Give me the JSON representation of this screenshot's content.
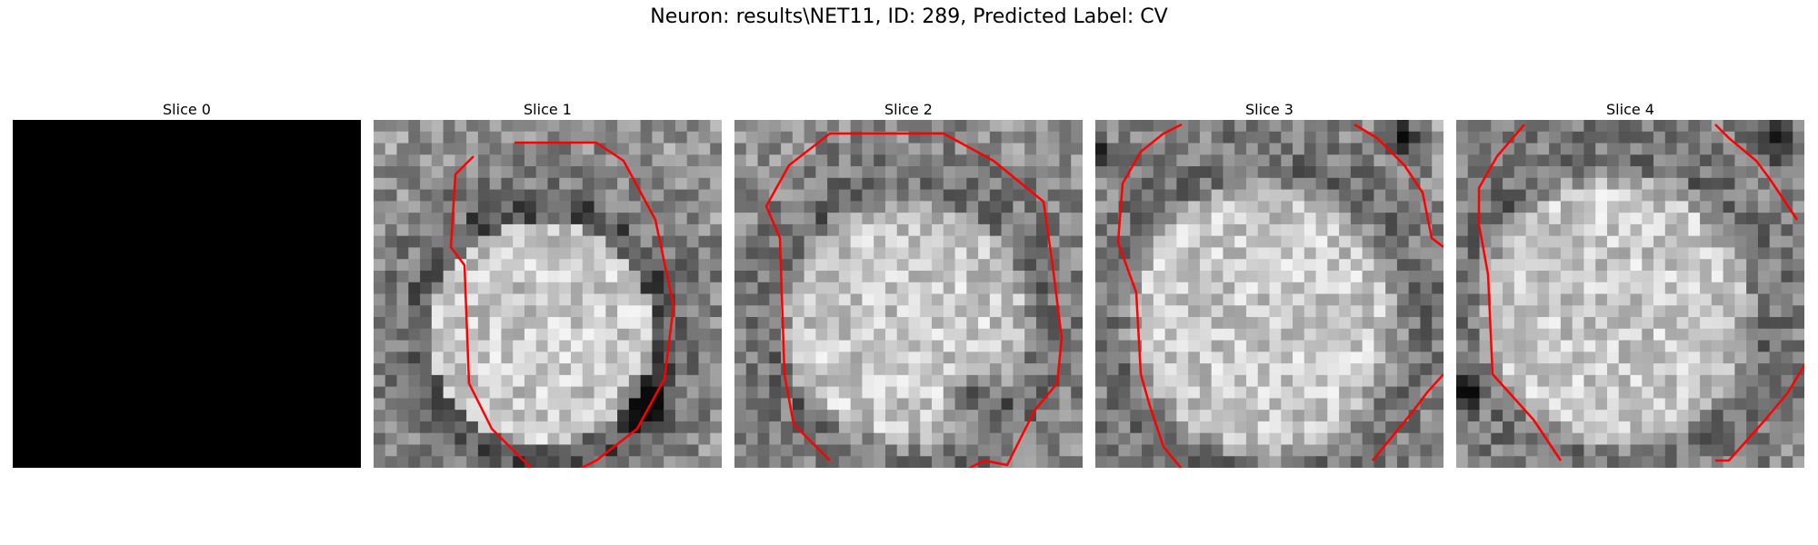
{
  "figure": {
    "title": "Neuron: results\\NET11, ID: 289, Predicted Label: CV"
  },
  "slices": [
    {
      "title": "Slice 0",
      "content": "black"
    },
    {
      "title": "Slice 1",
      "content": "grayscale texture with red contour"
    },
    {
      "title": "Slice 2",
      "content": "grayscale texture with red contour"
    },
    {
      "title": "Slice 3",
      "content": "grayscale texture with red contour"
    },
    {
      "title": "Slice 4",
      "content": "grayscale texture with red contour"
    }
  ],
  "colors": {
    "contour": "#ff0000",
    "background": "#ffffff",
    "slice0": "#000000"
  }
}
